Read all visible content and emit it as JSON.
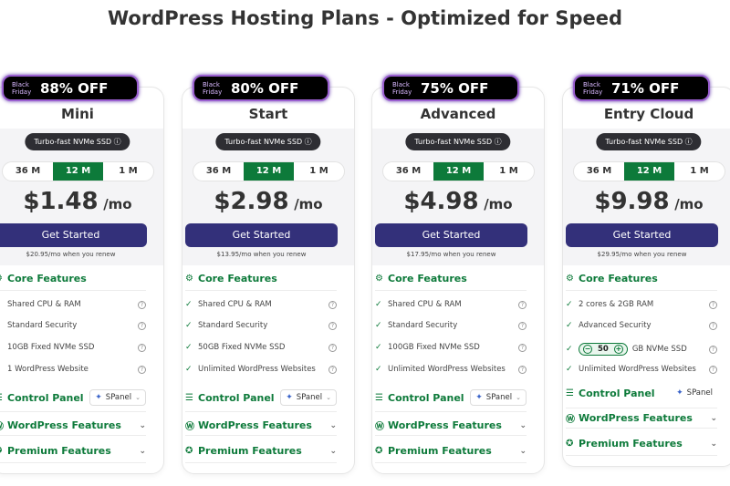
{
  "page_title": "WordPress Hosting Plans - Optimized for Speed",
  "colors": {
    "accent": "#0d7a3a",
    "button": "#33307a",
    "badge": "#000000"
  },
  "plans": [
    {
      "badge_tag": "Black Friday",
      "discount": "88% OFF",
      "name": "Mini",
      "pill": "Turbo-fast NVMe SSD",
      "terms": [
        "36 M",
        "12 M",
        "1 M"
      ],
      "selected_term": "12 M",
      "price": "$1.48",
      "per": "/mo",
      "cta": "Get Started",
      "renew": "$20.95/mo when you renew",
      "core_label": "Core Features",
      "features": [
        "Shared CPU & RAM",
        "Standard Security",
        "10GB Fixed NVMe SSD",
        "1 WordPress Website"
      ],
      "control_label": "Control Panel",
      "control_value": "SPanel",
      "wp_label": "WordPress Features",
      "premium_label": "Premium Features"
    },
    {
      "badge_tag": "Black Friday",
      "discount": "80% OFF",
      "name": "Start",
      "pill": "Turbo-fast NVMe SSD",
      "terms": [
        "36 M",
        "12 M",
        "1 M"
      ],
      "selected_term": "12 M",
      "price": "$2.98",
      "per": "/mo",
      "cta": "Get Started",
      "renew": "$13.95/mo when you renew",
      "core_label": "Core Features",
      "features": [
        "Shared CPU & RAM",
        "Standard Security",
        "50GB Fixed NVMe SSD",
        "Unlimited WordPress Websites"
      ],
      "control_label": "Control Panel",
      "control_value": "SPanel",
      "wp_label": "WordPress Features",
      "premium_label": "Premium Features"
    },
    {
      "badge_tag": "Black Friday",
      "discount": "75% OFF",
      "name": "Advanced",
      "pill": "Turbo-fast NVMe SSD",
      "terms": [
        "36 M",
        "12 M",
        "1 M"
      ],
      "selected_term": "12 M",
      "price": "$4.98",
      "per": "/mo",
      "cta": "Get Started",
      "renew": "$17.95/mo when you renew",
      "core_label": "Core Features",
      "features": [
        "Shared CPU & RAM",
        "Standard Security",
        "100GB Fixed NVMe SSD",
        "Unlimited WordPress Websites"
      ],
      "control_label": "Control Panel",
      "control_value": "SPanel",
      "wp_label": "WordPress Features",
      "premium_label": "Premium Features"
    },
    {
      "badge_tag": "Black Friday",
      "discount": "71% OFF",
      "name": "Entry Cloud",
      "pill": "Turbo-fast NVMe SSD",
      "terms": [
        "36 M",
        "12 M",
        "1 M"
      ],
      "selected_term": "12 M",
      "price": "$9.98",
      "per": "/mo",
      "cta": "Get Started",
      "renew": "$29.95/mo when you renew",
      "core_label": "Core Features",
      "features": [
        "2 cores & 2GB RAM",
        "Advanced Security",
        "GB NVMe SSD",
        "Unlimited WordPress Websites"
      ],
      "storage_stepper_value": "50",
      "control_label": "Control Panel",
      "control_value": "SPanel",
      "wp_label": "WordPress Features",
      "premium_label": "Premium Features"
    }
  ]
}
